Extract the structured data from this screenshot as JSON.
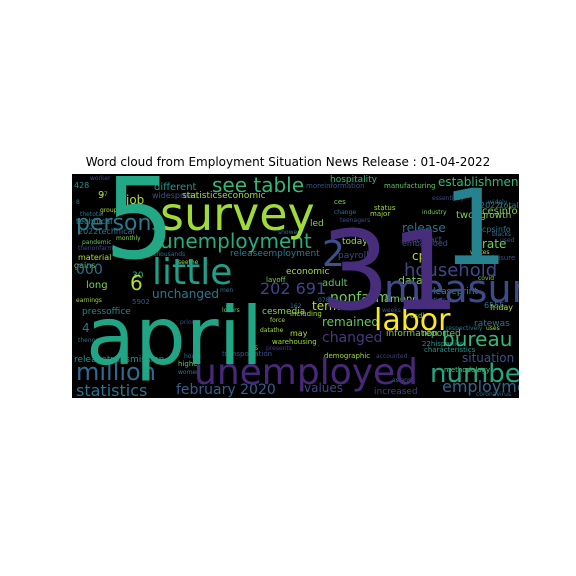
{
  "chart_data": {
    "type": "wordcloud",
    "title": "Word cloud from Employment Situation News Release : 01-04-2022",
    "background": "#000000",
    "colormap": "viridis",
    "words": [
      {
        "text": "april",
        "color": "#21a685"
      },
      {
        "text": "31",
        "color": "#472d7b"
      },
      {
        "text": "5",
        "color": "#22a884"
      },
      {
        "text": "1",
        "color": "#26828e"
      },
      {
        "text": "survey",
        "color": "#a0da39"
      },
      {
        "text": "unemployed",
        "color": "#482878"
      },
      {
        "text": "measure",
        "color": "#3e4a89"
      },
      {
        "text": "little",
        "color": "#1f9e89"
      },
      {
        "text": "labor",
        "color": "#fde725"
      },
      {
        "text": "unemployment",
        "color": "#27ad81"
      },
      {
        "text": "see table",
        "color": "#35b779"
      },
      {
        "text": "2",
        "color": "#3b528b"
      },
      {
        "text": "number",
        "color": "#22a884"
      },
      {
        "text": "million",
        "color": "#31688e"
      },
      {
        "text": "persons",
        "color": "#2a788e"
      },
      {
        "text": "household",
        "color": "#3e4989"
      },
      {
        "text": "bureau",
        "color": "#35b779"
      },
      {
        "text": "employment",
        "color": "#31688e"
      },
      {
        "text": "statistics",
        "color": "#2c728e"
      },
      {
        "text": "202 691",
        "color": "#414487"
      },
      {
        "text": "february 2020",
        "color": "#355f8d"
      },
      {
        "text": "6",
        "color": "#b5de2b"
      },
      {
        "text": "establishment",
        "color": "#35b779"
      },
      {
        "text": "situation",
        "color": "#3b528b"
      },
      {
        "text": "nonfarm",
        "color": "#6ece58"
      },
      {
        "text": "000",
        "color": "#2c728e"
      },
      {
        "text": "job",
        "color": "#b5de2b"
      },
      {
        "text": "remained",
        "color": "#5ec962"
      },
      {
        "text": "changed",
        "color": "#443983"
      },
      {
        "text": "release",
        "color": "#2c728e"
      },
      {
        "text": "rate",
        "color": "#6ece58"
      },
      {
        "text": "data",
        "color": "#7ad151"
      },
      {
        "text": "cps",
        "color": "#b5de2b"
      },
      {
        "text": "values",
        "color": "#3e4a89"
      },
      {
        "text": "term",
        "color": "#b5de2b"
      },
      {
        "text": "different",
        "color": "#1f988b"
      },
      {
        "text": "unchanged",
        "color": "#2a788e"
      },
      {
        "text": "adult",
        "color": "#5ec962"
      },
      {
        "text": "today",
        "color": "#a0da39"
      },
      {
        "text": "among",
        "color": "#84d44b"
      },
      {
        "text": "economic",
        "color": "#a0da39"
      },
      {
        "text": "releaseprint",
        "color": "#1f988b"
      },
      {
        "text": "cesinfo",
        "color": "#7ad151"
      },
      {
        "text": "growth",
        "color": "#84d44b"
      },
      {
        "text": "payroll",
        "color": "#3e4a89"
      },
      {
        "text": "ratewas",
        "color": "#2c728e"
      },
      {
        "text": "reported",
        "color": "#5ec962"
      },
      {
        "text": "increased",
        "color": "#433e85"
      },
      {
        "text": "information",
        "color": "#7ad151"
      },
      {
        "text": "releasetransmission",
        "color": "#21918c"
      },
      {
        "text": "statisticseconomic",
        "color": "#a0da39"
      },
      {
        "text": "pressoffice",
        "color": "#25848e"
      },
      {
        "text": "releaseemployment",
        "color": "#2a788e"
      },
      {
        "text": "cesmedia",
        "color": "#84d44b"
      },
      {
        "text": "hospitality",
        "color": "#35b779"
      },
      {
        "text": "widespread",
        "color": "#3b528b"
      },
      {
        "text": "embargoed",
        "color": "#3b528b"
      },
      {
        "text": "contact",
        "color": "#3b528b"
      },
      {
        "text": "2022technical",
        "color": "#2c728e"
      },
      {
        "text": "2022total",
        "color": "#2a788e"
      },
      {
        "text": "cpsinfo",
        "color": "#2c728e"
      },
      {
        "text": "technical",
        "color": "#21918c"
      },
      {
        "text": "material",
        "color": "#b5de2b"
      },
      {
        "text": "gains",
        "color": "#6ece58"
      },
      {
        "text": "long",
        "color": "#7ad151"
      },
      {
        "text": "friday",
        "color": "#b5de2b"
      },
      {
        "text": "manufacturing",
        "color": "#5ec962"
      },
      {
        "text": "industry",
        "color": "#7ad151"
      },
      {
        "text": "layoff",
        "color": "#7ad151"
      },
      {
        "text": "may",
        "color": "#b5de2b"
      },
      {
        "text": "characteristics",
        "color": "#1f988b"
      },
      {
        "text": "transportation",
        "color": "#3b528b"
      },
      {
        "text": "warehousing",
        "color": "#a0da39"
      },
      {
        "text": "22hispanics",
        "color": "#21918c"
      },
      {
        "text": "methodology",
        "color": "#5ec962"
      },
      {
        "text": "coronavirus",
        "color": "#2c728e"
      },
      {
        "text": "covid",
        "color": "#7ad151"
      },
      {
        "text": "leisure",
        "color": "#3b528b"
      },
      {
        "text": "whites",
        "color": "#b5de2b"
      },
      {
        "text": "pandemic",
        "color": "#5ec962"
      },
      {
        "text": "monthly",
        "color": "#84d44b"
      },
      {
        "text": "worker",
        "color": "#3e4a89"
      },
      {
        "text": "earnings",
        "color": "#a0da39"
      },
      {
        "text": "women",
        "color": "#2a788e"
      },
      {
        "text": "higher",
        "color": "#5ec962"
      },
      {
        "text": "demographic",
        "color": "#a0da39"
      },
      {
        "text": "including",
        "color": "#a0da39"
      },
      {
        "text": "force",
        "color": "#a0da39"
      },
      {
        "text": "change",
        "color": "#2c728e"
      },
      {
        "text": "major",
        "color": "#a0da39"
      },
      {
        "text": "status",
        "color": "#a0da39"
      },
      {
        "text": "teenagers",
        "color": "#3e4a89"
      },
      {
        "text": "ces",
        "color": "#7ad151"
      },
      {
        "text": "moreinformation",
        "color": "#3b528b"
      },
      {
        "text": "9",
        "color": "#a0da39"
      },
      {
        "text": "4",
        "color": "#2c728e"
      },
      {
        "text": "30",
        "color": "#35b779"
      },
      {
        "text": "428",
        "color": "#21918c"
      },
      {
        "text": "6555",
        "color": "#2c728e"
      },
      {
        "text": "5902",
        "color": "#3b528b"
      },
      {
        "text": "07876",
        "color": "#2a788e"
      },
      {
        "text": "two",
        "color": "#7ad151"
      },
      {
        "text": "uses",
        "color": "#a0da39"
      },
      {
        "text": "s",
        "color": "#7ad151"
      },
      {
        "text": "led",
        "color": "#84d44b"
      },
      {
        "text": "widely",
        "color": "#2c728e"
      },
      {
        "text": "thetotal",
        "color": "#2c728e"
      },
      {
        "text": "datathe",
        "color": "#a0da39"
      },
      {
        "text": "presents",
        "color": "#443983"
      },
      {
        "text": "seethe",
        "color": "#a0da39"
      },
      {
        "text": "prior",
        "color": "#3e4a89"
      },
      {
        "text": "men",
        "color": "#2c728e"
      },
      {
        "text": "losers",
        "color": "#7ad151"
      },
      {
        "text": "weeks",
        "color": "#3b528b"
      },
      {
        "text": "usdl",
        "color": "#5ec962"
      },
      {
        "text": "asians",
        "color": "#2c728e"
      },
      {
        "text": "essentially",
        "color": "#3e4a89"
      },
      {
        "text": "respectively",
        "color": "#2a788e"
      },
      {
        "text": "blacks",
        "color": "#2c728e"
      },
      {
        "text": "used",
        "color": "#3b528b"
      },
      {
        "text": "thousands",
        "color": "#2c728e"
      },
      {
        "text": "accounted",
        "color": "#414487"
      },
      {
        "text": "hours",
        "color": "#2c728e"
      },
      {
        "text": "thenonfarm",
        "color": "#3e4a89"
      },
      {
        "text": "thenonth",
        "color": "#2c728e"
      },
      {
        "text": "essentials",
        "color": "#3b528b"
      },
      {
        "text": "showed",
        "color": "#2c728e"
      },
      {
        "text": "group",
        "color": "#b5de2b"
      },
      {
        "text": "27",
        "color": "#5ec962"
      },
      {
        "text": "8",
        "color": "#2a788e"
      },
      {
        "text": "162",
        "color": "#2c728e"
      }
    ]
  }
}
